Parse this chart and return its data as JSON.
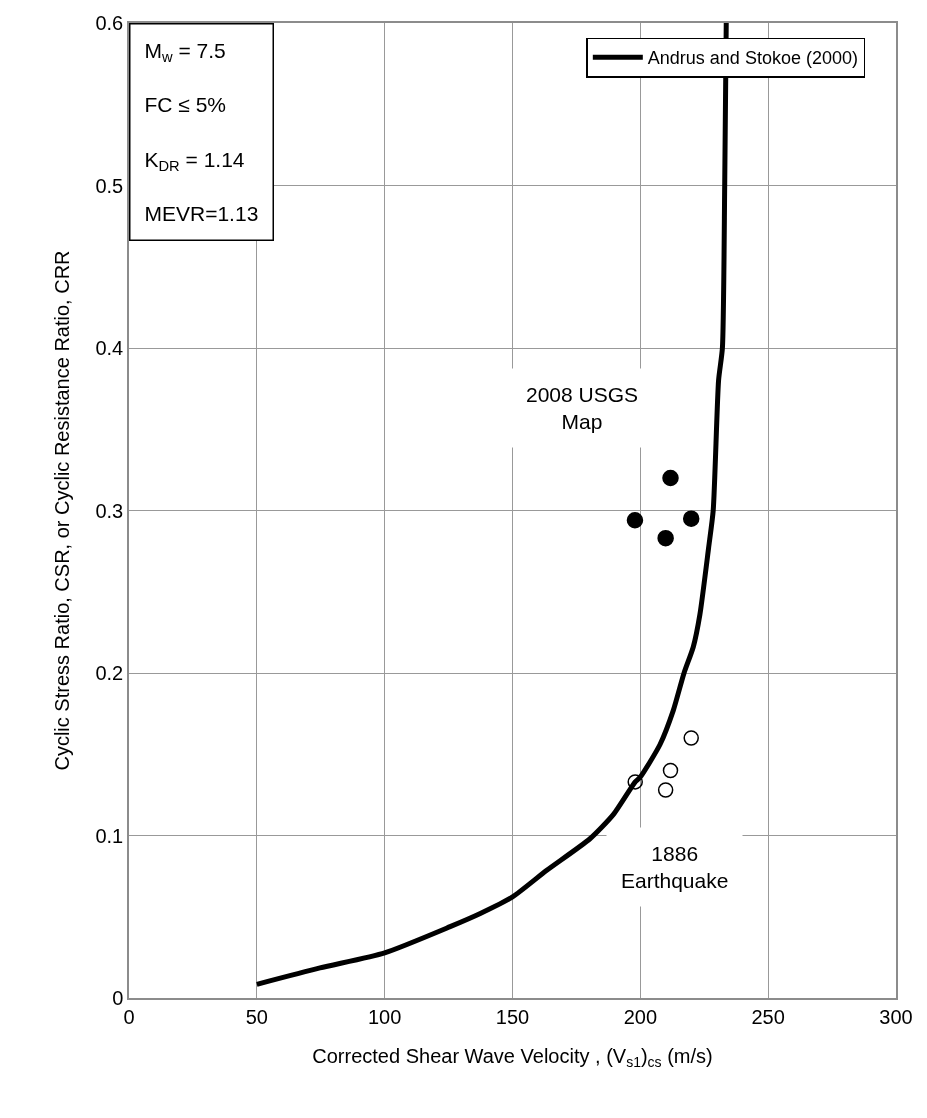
{
  "chart_data": {
    "type": "scatter",
    "xlabel": "Corrected Shear Wave Velocity , (V$_{s1}$)$_{cs}$ (m/s)",
    "ylabel": "Cyclic Stress Ratio, CSR, or Cyclic Resistance Ratio, CRR",
    "xlim": [
      0,
      300
    ],
    "xticks": [
      0,
      50,
      100,
      150,
      200,
      250,
      300
    ],
    "ylim": [
      0,
      0.6
    ],
    "yticks": [
      0,
      0.1,
      0.2,
      0.3,
      0.4,
      0.5,
      0.6
    ],
    "grid": true,
    "legend": "top right",
    "series": [
      {
        "name": "Andrus and Stokoe (2000)",
        "type": "line",
        "color": "#000000",
        "marker": "none",
        "line_style": "solid",
        "x": [
          50,
          74.7,
          100,
          125.6,
          137.4,
          150,
          163.4,
          180.3,
          189.5,
          198,
          200,
          207.7,
          212.9,
          217.1,
          220.7,
          223.3,
          226.7,
          228.5,
          230.6,
          232.1,
          233,
          233.6
        ],
        "values": [
          0.0084,
          0.0185,
          0.0278,
          0.0439,
          0.052,
          0.0622,
          0.0786,
          0.098,
          0.113,
          0.133,
          0.136,
          0.156,
          0.177,
          0.2,
          0.216,
          0.236,
          0.277,
          0.3,
          0.38,
          0.4,
          0.5,
          0.6
        ]
      },
      {
        "color": "#000000",
        "marker": "circle",
        "x": [
          211.8,
          197.9,
          219.9,
          209.9
        ],
        "values": [
          0.32,
          0.294,
          0.295,
          0.283
        ]
      },
      {
        "color": "#000000",
        "marker": "circle-open",
        "x": [
          219.9,
          211.8,
          209.9,
          198
        ],
        "values": [
          0.16,
          0.14,
          0.128,
          0.133
        ]
      }
    ],
    "annotations": [
      "M$_{w}$ = 7.5\nFC ≤ 5%\nK$_{DR}$ = 1.14\nMEVR=1.13",
      "2008 USGS\nMap",
      "1886\nEarthquake"
    ]
  }
}
